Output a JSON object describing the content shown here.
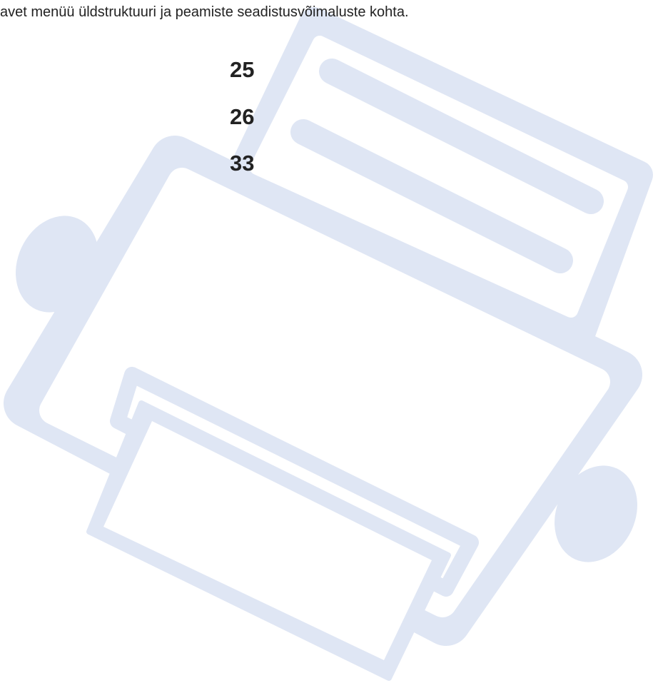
{
  "body": {
    "sentence": "avet menüü üldstruktuuri ja peamiste seadistusvõimaluste kohta."
  },
  "page_refs": [
    "25",
    "26",
    "33"
  ]
}
